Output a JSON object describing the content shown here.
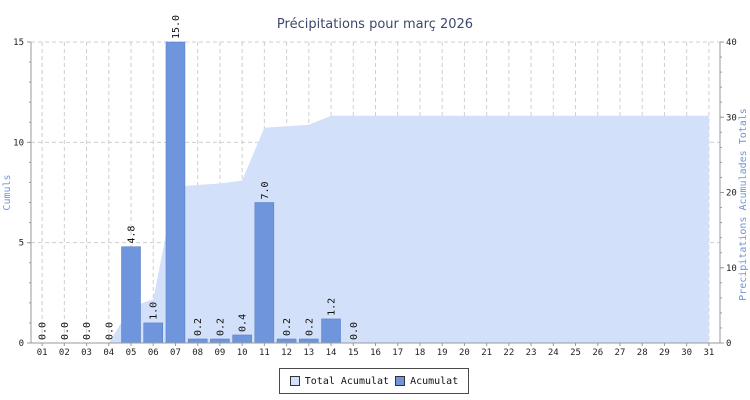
{
  "chart_data": {
    "type": "bar",
    "title": "Précipitations pour març 2026",
    "ylabel_left": "Cumuls",
    "ylabel_right": "Precipitations Acumulades Totals",
    "categories": [
      "01",
      "02",
      "03",
      "04",
      "05",
      "06",
      "07",
      "08",
      "09",
      "10",
      "11",
      "12",
      "13",
      "14",
      "15",
      "16",
      "17",
      "18",
      "19",
      "20",
      "21",
      "22",
      "23",
      "24",
      "25",
      "26",
      "27",
      "28",
      "29",
      "30",
      "31"
    ],
    "series": [
      {
        "name": "Acumulat",
        "type": "bar",
        "axis": "left",
        "color": "#6f96dd",
        "values": [
          0.0,
          0.0,
          0.0,
          0.0,
          4.8,
          1.0,
          15.0,
          0.2,
          0.2,
          0.4,
          7.0,
          0.2,
          0.2,
          1.2,
          0.0,
          null,
          null,
          null,
          null,
          null,
          null,
          null,
          null,
          null,
          null,
          null,
          null,
          null,
          null,
          null,
          null
        ],
        "labels": [
          "0.0",
          "0.0",
          "0.0",
          "0.0",
          "4.8",
          "1.0",
          "15.0",
          "0.2",
          "0.2",
          "0.4",
          "7.0",
          "0.2",
          "0.2",
          "1.2",
          "0.0"
        ]
      },
      {
        "name": "Total Acumulat",
        "type": "area",
        "axis": "right",
        "color": "#d2e0f9",
        "values": [
          0.0,
          0.0,
          0.0,
          0.0,
          4.8,
          5.8,
          20.8,
          21.0,
          21.2,
          21.6,
          28.6,
          28.8,
          29.0,
          30.2,
          30.2,
          30.2,
          30.2,
          30.2,
          30.2,
          30.2,
          30.2,
          30.2,
          30.2,
          30.2,
          30.2,
          30.2,
          30.2,
          30.2,
          30.2,
          30.2,
          30.2
        ]
      }
    ],
    "ylim_left": [
      0,
      15
    ],
    "yticks_left": [
      0,
      5,
      10,
      15
    ],
    "ylim_right": [
      0,
      40
    ],
    "yticks_right": [
      0,
      10,
      20,
      30,
      40
    ],
    "grid": true,
    "legend_position": "bottom-center"
  },
  "legend": {
    "total_label": "Total Acumulat",
    "daily_label": "Acumulat",
    "total_color": "#d2e0f9",
    "daily_color": "#6f96dd"
  }
}
